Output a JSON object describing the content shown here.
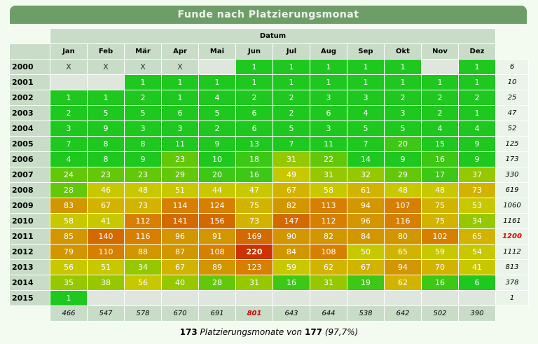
{
  "title": "Funde nach Platzierungsmonat",
  "caption": "Datum",
  "months": [
    "Jan",
    "Feb",
    "Mär",
    "Apr",
    "Mai",
    "Jun",
    "Jul",
    "Aug",
    "Sep",
    "Okt",
    "Nov",
    "Dez"
  ],
  "rows": [
    {
      "year": "2000",
      "cells": [
        "X",
        "X",
        "X",
        "X",
        "",
        "1",
        "1",
        "1",
        "1",
        "1",
        "",
        "1"
      ],
      "total": "6"
    },
    {
      "year": "2001",
      "cells": [
        "",
        "",
        "1",
        "1",
        "1",
        "1",
        "1",
        "1",
        "1",
        "1",
        "1",
        "1"
      ],
      "total": "10"
    },
    {
      "year": "2002",
      "cells": [
        "1",
        "1",
        "2",
        "1",
        "4",
        "2",
        "2",
        "3",
        "3",
        "2",
        "2",
        "2"
      ],
      "total": "25"
    },
    {
      "year": "2003",
      "cells": [
        "2",
        "5",
        "5",
        "6",
        "5",
        "6",
        "2",
        "6",
        "4",
        "3",
        "2",
        "1"
      ],
      "total": "47"
    },
    {
      "year": "2004",
      "cells": [
        "3",
        "9",
        "3",
        "3",
        "2",
        "6",
        "5",
        "3",
        "5",
        "5",
        "4",
        "4"
      ],
      "total": "52"
    },
    {
      "year": "2005",
      "cells": [
        "7",
        "8",
        "8",
        "11",
        "9",
        "13",
        "7",
        "11",
        "7",
        "20",
        "15",
        "9"
      ],
      "total": "125"
    },
    {
      "year": "2006",
      "cells": [
        "4",
        "8",
        "9",
        "23",
        "10",
        "18",
        "31",
        "22",
        "14",
        "9",
        "16",
        "9"
      ],
      "total": "173"
    },
    {
      "year": "2007",
      "cells": [
        "24",
        "23",
        "23",
        "29",
        "20",
        "16",
        "49",
        "31",
        "32",
        "29",
        "17",
        "37"
      ],
      "total": "330"
    },
    {
      "year": "2008",
      "cells": [
        "28",
        "46",
        "48",
        "51",
        "44",
        "47",
        "67",
        "58",
        "61",
        "48",
        "48",
        "73"
      ],
      "total": "619"
    },
    {
      "year": "2009",
      "cells": [
        "83",
        "67",
        "73",
        "114",
        "124",
        "75",
        "82",
        "113",
        "94",
        "107",
        "75",
        "53"
      ],
      "total": "1060"
    },
    {
      "year": "2010",
      "cells": [
        "58",
        "41",
        "112",
        "141",
        "156",
        "73",
        "147",
        "112",
        "96",
        "116",
        "75",
        "34"
      ],
      "total": "1161"
    },
    {
      "year": "2011",
      "cells": [
        "85",
        "140",
        "116",
        "96",
        "91",
        "169",
        "90",
        "82",
        "84",
        "80",
        "102",
        "65"
      ],
      "total": "1200"
    },
    {
      "year": "2012",
      "cells": [
        "79",
        "110",
        "88",
        "87",
        "108",
        "220",
        "84",
        "108",
        "50",
        "65",
        "59",
        "54"
      ],
      "total": "1112"
    },
    {
      "year": "2013",
      "cells": [
        "56",
        "51",
        "34",
        "67",
        "89",
        "123",
        "59",
        "62",
        "67",
        "94",
        "70",
        "41"
      ],
      "total": "813"
    },
    {
      "year": "2014",
      "cells": [
        "35",
        "38",
        "56",
        "40",
        "28",
        "31",
        "16",
        "31",
        "19",
        "62",
        "16",
        "6"
      ],
      "total": "378"
    },
    {
      "year": "2015",
      "cells": [
        "1",
        "",
        "",
        "",
        "",
        "",
        "",
        "",
        "",
        "",
        "",
        ""
      ],
      "total": "1"
    }
  ],
  "column_totals": [
    "466",
    "547",
    "578",
    "670",
    "691",
    "801",
    "643",
    "644",
    "538",
    "642",
    "502",
    "390"
  ],
  "summary": {
    "count": "173",
    "text": "Platzierungsmonate von",
    "total": "177",
    "percent": "(97,7%)"
  },
  "chart_data": {
    "type": "heatmap",
    "title": "Funde nach Platzierungsmonat",
    "xlabel": "Datum",
    "x": [
      "Jan",
      "Feb",
      "Mär",
      "Apr",
      "Mai",
      "Jun",
      "Jul",
      "Aug",
      "Sep",
      "Okt",
      "Nov",
      "Dez"
    ],
    "y": [
      "2000",
      "2001",
      "2002",
      "2003",
      "2004",
      "2005",
      "2006",
      "2007",
      "2008",
      "2009",
      "2010",
      "2011",
      "2012",
      "2013",
      "2014",
      "2015"
    ],
    "values": [
      [
        null,
        null,
        null,
        null,
        null,
        1,
        1,
        1,
        1,
        1,
        null,
        1
      ],
      [
        null,
        null,
        1,
        1,
        1,
        1,
        1,
        1,
        1,
        1,
        1,
        1
      ],
      [
        1,
        1,
        2,
        1,
        4,
        2,
        2,
        3,
        3,
        2,
        2,
        2
      ],
      [
        2,
        5,
        5,
        6,
        5,
        6,
        2,
        6,
        4,
        3,
        2,
        1
      ],
      [
        3,
        9,
        3,
        3,
        2,
        6,
        5,
        3,
        5,
        5,
        4,
        4
      ],
      [
        7,
        8,
        8,
        11,
        9,
        13,
        7,
        11,
        7,
        20,
        15,
        9
      ],
      [
        4,
        8,
        9,
        23,
        10,
        18,
        31,
        22,
        14,
        9,
        16,
        9
      ],
      [
        24,
        23,
        23,
        29,
        20,
        16,
        49,
        31,
        32,
        29,
        17,
        37
      ],
      [
        28,
        46,
        48,
        51,
        44,
        47,
        67,
        58,
        61,
        48,
        48,
        73
      ],
      [
        83,
        67,
        73,
        114,
        124,
        75,
        82,
        113,
        94,
        107,
        75,
        53
      ],
      [
        58,
        41,
        112,
        141,
        156,
        73,
        147,
        112,
        96,
        116,
        75,
        34
      ],
      [
        85,
        140,
        116,
        96,
        91,
        169,
        90,
        82,
        84,
        80,
        102,
        65
      ],
      [
        79,
        110,
        88,
        87,
        108,
        220,
        84,
        108,
        50,
        65,
        59,
        54
      ],
      [
        56,
        51,
        34,
        67,
        89,
        123,
        59,
        62,
        67,
        94,
        70,
        41
      ],
      [
        35,
        38,
        56,
        40,
        28,
        31,
        16,
        31,
        19,
        62,
        16,
        6
      ],
      [
        1,
        null,
        null,
        null,
        null,
        null,
        null,
        null,
        null,
        null,
        null,
        null
      ]
    ],
    "row_totals": [
      6,
      10,
      25,
      47,
      52,
      125,
      173,
      330,
      619,
      1060,
      1161,
      1200,
      1112,
      813,
      378,
      1
    ],
    "column_totals": [
      466,
      547,
      578,
      670,
      691,
      801,
      643,
      644,
      538,
      642,
      502,
      390
    ],
    "colors": {
      "low": "#1ec81e",
      "mid": "#c8c800",
      "high": "#d66a00",
      "max": "#cc3300",
      "empty": "#c8dcc8"
    }
  }
}
